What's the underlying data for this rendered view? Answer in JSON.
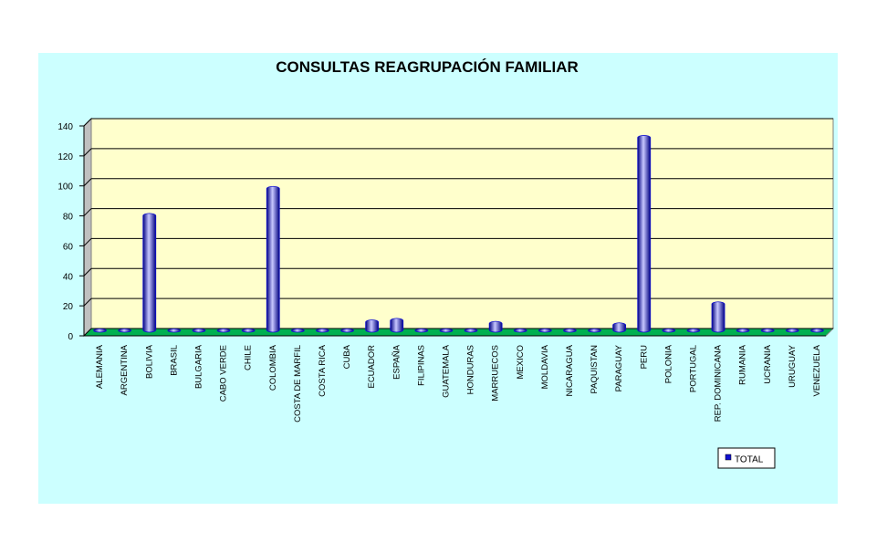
{
  "chart_data": {
    "type": "bar",
    "title": "CONSULTAS REAGRUPACIÓN FAMILIAR",
    "categories": [
      "ALEMANIA",
      "ARGENTINA",
      "BOLIVIA",
      "BRASIL",
      "BULGARIA",
      "CABO VERDE",
      "CHILE",
      "COLOMBIA",
      "COSTA DE MARFIL",
      "COSTA RICA",
      "CUBA",
      "ECUADOR",
      "ESPAÑA",
      "FILIPINAS",
      "GUATEMALA",
      "HONDURAS",
      "MARRUECOS",
      "MEXICO",
      "MOLDAVIA",
      "NICARAGUA",
      "PAQUISTAN",
      "PARAGUAY",
      "PERU",
      "POLONIA",
      "PORTUGAL",
      "REP. DOMINICANA",
      "RUMANIA",
      "UCRANIA",
      "URUGUAY",
      "VENEZUELA"
    ],
    "series": [
      {
        "name": "TOTAL",
        "color": "#1010d0",
        "values": [
          1,
          1,
          78,
          1,
          1,
          1,
          1,
          96,
          1,
          1,
          1,
          7,
          8,
          1,
          1,
          1,
          6,
          1,
          1,
          1,
          1,
          5,
          130,
          1,
          1,
          19,
          1,
          1,
          1,
          1
        ]
      }
    ],
    "ylim": [
      0,
      140
    ],
    "yticks": [
      0,
      20,
      40,
      60,
      80,
      100,
      120,
      140
    ],
    "grid": true
  }
}
